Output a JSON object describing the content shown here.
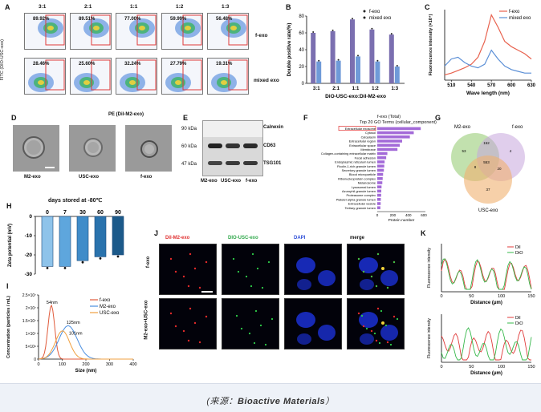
{
  "figure": {
    "panel_letters": [
      "A",
      "B",
      "C",
      "D",
      "E",
      "F",
      "G",
      "H",
      "I",
      "J",
      "K"
    ],
    "panel_a": {
      "ratios": [
        "3:1",
        "2:1",
        "1:1",
        "1:2",
        "1:3"
      ],
      "fexo_percents": [
        "89.92%",
        "89.51%",
        "77.00%",
        "59.99%",
        "56.48%"
      ],
      "mixed_percents": [
        "28.46%",
        "25.60%",
        "32.24%",
        "27.79%",
        "19.31%"
      ],
      "row1_label": "f-exo",
      "row2_label": "mixed exo",
      "ylabel": "FITC (DIO-USC-exo)",
      "xlabel": "PE (Dil-M2-exo)"
    },
    "panel_d": {
      "labels": [
        "M2-exo",
        "USC-exo",
        "f-exo"
      ]
    },
    "panel_e": {
      "kda": [
        "90 kDa",
        "60 kDa",
        "47 kDa"
      ],
      "proteins": [
        "Calnexin",
        "CD63",
        "TSG101"
      ],
      "lanes": [
        "M2-exo",
        "USC-exo",
        "f-exo"
      ]
    },
    "panel_f": {
      "title_line1": "f-exo (Total)",
      "title_line2": "Top 20 GO Terms (cellular_component)",
      "xlabel": "Protein number",
      "ticks": [
        "0",
        "200",
        "400",
        "600"
      ],
      "terms": [
        "Extracellular exosome",
        "Cytosol",
        "Cytoplasm",
        "Extracellular region",
        "Extracellular space",
        "Membrane",
        "Collagen-containing extracellular matrix",
        "Focal adhesion",
        "Endoplasmic reticulum lumen",
        "Ficolin-1-rich granule lumen",
        "Secretory granule lumen",
        "Blood microparticle",
        "Ribonucleoprotein complex",
        "Melanosome",
        "Lysosomal lumen",
        "Azurophil granule lumen",
        "Proteasome complex",
        "Platelet alpha granule lumen",
        "Extracellular vesicle",
        "Tertiary granule lumen"
      ]
    },
    "panel_g": {
      "sets": [
        "M2-exo",
        "f-exo",
        "USC-exo"
      ],
      "numbers": [
        "53",
        "152",
        "4",
        "8",
        "553",
        "20",
        "37"
      ]
    },
    "panel_h": {
      "title": "days stored at -80℃",
      "ylabel": "Zeta potential (mV)",
      "yticks": [
        "0",
        "-10",
        "-20",
        "-30"
      ]
    },
    "panel_i": {
      "ylabel": "Concentration (particles / mL)",
      "xlabel": "Size (nm)",
      "yticks": [
        "0",
        "5×10⁶",
        "1×10⁷",
        "1.5×10⁷",
        "2×10⁷",
        "2.5×10⁷"
      ],
      "xticks": [
        "0",
        "100",
        "200",
        "300",
        "400"
      ],
      "annotations": [
        "54nm",
        "125nm",
        "101nm"
      ],
      "legend": [
        "f-exo",
        "M2-exo",
        "USC-exo"
      ]
    },
    "panel_j": {
      "columns": [
        "Dil-M2-exo",
        "DIO-USC-exo",
        "DAPI",
        "merge"
      ],
      "rows": [
        "f-exo",
        "M2-exo+USC-exo"
      ]
    },
    "panel_k": {
      "ylabel": "Fluorescence intensity",
      "xlabel": "Distance (μm)",
      "xticks": [
        "0",
        "50",
        "100",
        "150"
      ],
      "legend": [
        "Dil",
        "DiO"
      ]
    }
  },
  "chart_data": [
    {
      "type": "bar",
      "panel": "B",
      "title": "",
      "categories": [
        "3:1",
        "2:1",
        "1:1",
        "1:2",
        "1:3"
      ],
      "series": [
        {
          "name": "f-exo",
          "values": [
            60,
            62,
            76,
            64,
            58
          ]
        },
        {
          "name": "mixed exo",
          "values": [
            26,
            27,
            32,
            26,
            20
          ]
        }
      ],
      "xlabel": "DiO-USC-exo:Dil-M2-exo",
      "ylabel": "Double positive rate(%)",
      "ylim": [
        0,
        80
      ],
      "yticks": [
        "0",
        "20",
        "40",
        "60",
        "80"
      ],
      "colors": {
        "f-exo": "#7b6fb0",
        "mixed exo": "#6f9ad8"
      }
    },
    {
      "type": "line",
      "panel": "C",
      "title": "",
      "x": [
        500,
        510,
        520,
        530,
        540,
        550,
        560,
        570,
        580,
        590,
        600,
        610,
        620,
        630
      ],
      "series": [
        {
          "name": "f-exo",
          "values": [
            0.3,
            0.4,
            0.55,
            0.7,
            0.9,
            1.3,
            2.2,
            3.7,
            3.0,
            2.2,
            1.9,
            1.7,
            1.5,
            1.2
          ]
        },
        {
          "name": "mixed exo",
          "values": [
            0.8,
            1.2,
            1.3,
            1.0,
            0.8,
            0.7,
            0.9,
            1.7,
            1.2,
            0.8,
            0.6,
            0.5,
            0.4,
            0.4
          ]
        }
      ],
      "xlabel": "Wave length (nm)",
      "ylabel": "Fluorescence intensity (×10⁴)",
      "xticks": [
        "510",
        "540",
        "570",
        "600",
        "630"
      ],
      "ylim": [
        0,
        4
      ],
      "colors": {
        "f-exo": "#e8624e",
        "mixed exo": "#5b8fd6"
      }
    },
    {
      "type": "bar",
      "panel": "H",
      "title": "days stored at -80℃",
      "categories": [
        "0",
        "7",
        "30",
        "60",
        "90"
      ],
      "values": [
        -26,
        -26,
        -23,
        -21,
        -20
      ],
      "ylabel": "Zeta potential (mV)",
      "ylim": [
        -30,
        0
      ],
      "colors": [
        "#8ec3ea",
        "#5ea6dd",
        "#3f8cc9",
        "#2a73ad",
        "#1c5a8a"
      ]
    }
  ],
  "source_caption": {
    "prefix": "(来源：",
    "journal": "Bioactive Materials",
    "suffix": "）"
  }
}
